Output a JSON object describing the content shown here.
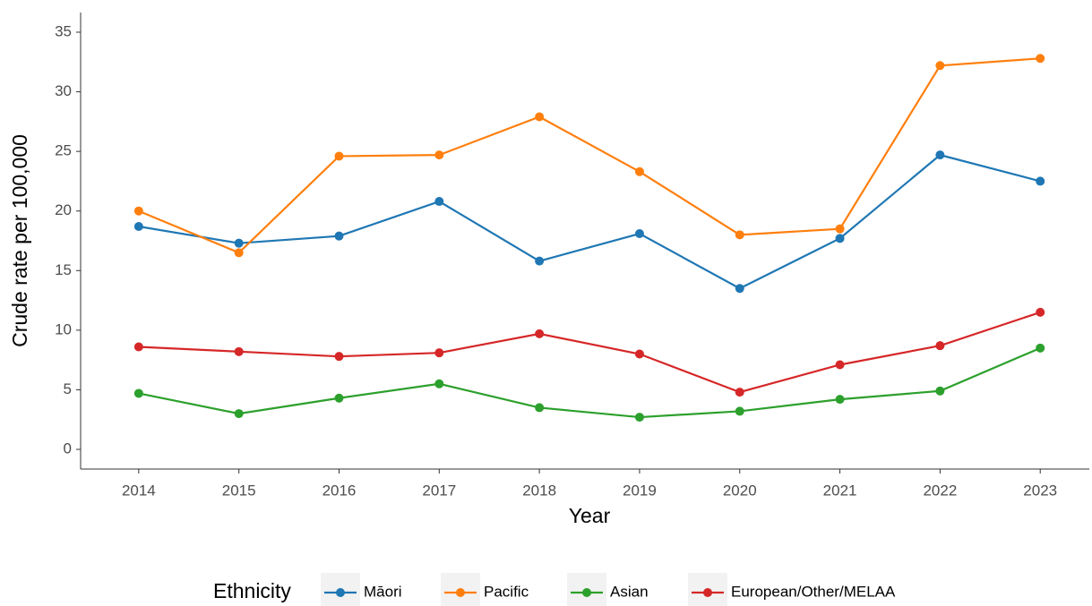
{
  "chart_data": {
    "type": "line",
    "x_label": "Year",
    "y_label": "Crude rate per 100,000",
    "x": [
      2014,
      2015,
      2016,
      2017,
      2018,
      2019,
      2020,
      2021,
      2022,
      2023
    ],
    "series": [
      {
        "name": "Māori",
        "color": "#1f77b4",
        "values": [
          18.7,
          17.3,
          17.9,
          20.8,
          15.8,
          18.1,
          13.5,
          17.7,
          24.7,
          22.5
        ]
      },
      {
        "name": "Pacific",
        "color": "#ff7f0e",
        "values": [
          20.0,
          16.5,
          24.6,
          24.7,
          27.9,
          23.3,
          18.0,
          18.5,
          32.2,
          32.8
        ]
      },
      {
        "name": "Asian",
        "color": "#2ca02c",
        "values": [
          4.7,
          3.0,
          4.3,
          5.5,
          3.5,
          2.7,
          3.2,
          4.2,
          4.9,
          8.5
        ]
      },
      {
        "name": "European/Other/MELAA",
        "color": "#d62728",
        "values": [
          8.6,
          8.2,
          7.8,
          8.1,
          9.7,
          8.0,
          4.8,
          7.1,
          8.7,
          11.5
        ]
      }
    ],
    "xlim": [
      2013.42,
      2023.49
    ],
    "xticks": [
      2014,
      2015,
      2016,
      2017,
      2018,
      2019,
      2020,
      2021,
      2022,
      2023
    ],
    "ylim": [
      -1.65,
      36.65
    ],
    "yticks": [
      0,
      5,
      10,
      15,
      20,
      25,
      30,
      35
    ],
    "grid": false,
    "legend_title": "Ethnicity",
    "legend_position": "bottom"
  }
}
